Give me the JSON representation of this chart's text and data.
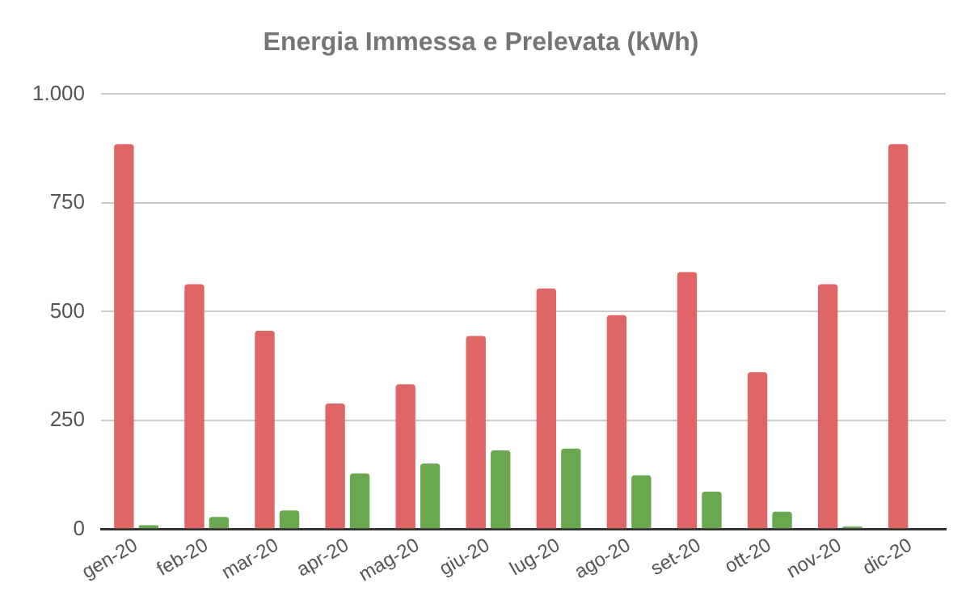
{
  "chart_data": {
    "type": "bar",
    "title": "Energia Immessa e Prelevata (kWh)",
    "categories": [
      "gen-20",
      "feb-20",
      "mar-20",
      "apr-20",
      "mag-20",
      "giu-20",
      "lug-20",
      "ago-20",
      "set-20",
      "ott-20",
      "nov-20",
      "dic-20"
    ],
    "series": [
      {
        "color": "#e06666",
        "values": [
          885,
          563,
          456,
          289,
          333,
          444,
          553,
          492,
          591,
          361,
          563,
          885
        ]
      },
      {
        "color": "#6aa84f",
        "values": [
          9,
          28,
          43,
          128,
          151,
          181,
          185,
          124,
          86,
          40,
          6,
          0
        ]
      }
    ],
    "ylim": [
      0,
      1000
    ],
    "yticks": [
      0,
      250,
      500,
      750,
      {
        "value": 1000,
        "label": "1.000"
      }
    ],
    "grid": "y",
    "legend": false
  }
}
